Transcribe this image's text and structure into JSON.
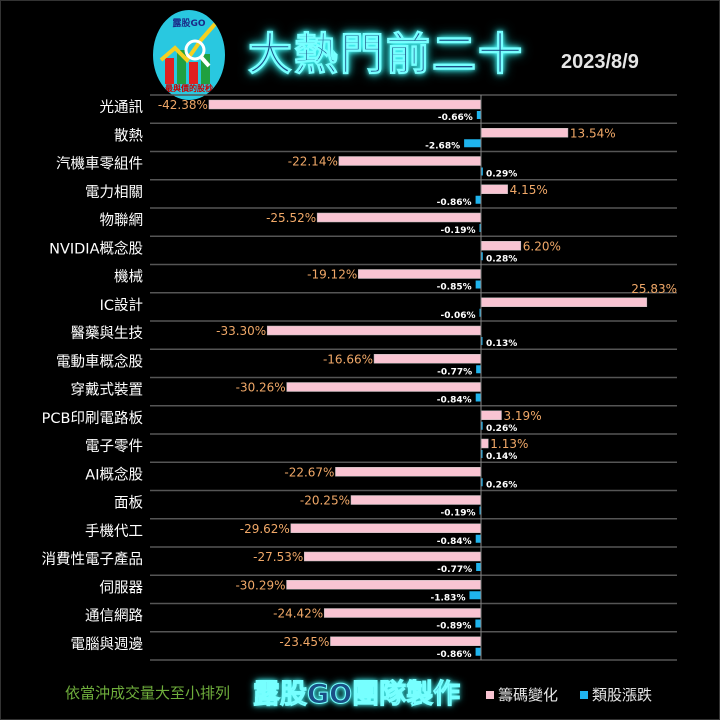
{
  "header": {
    "logo_text_top": "露股GO",
    "logo_text_bottom": "最與價的股秒",
    "title": "大熱門前二十",
    "date": "2023/8/9"
  },
  "footer": {
    "note": "依當沖成交量大至小排列",
    "team": "露股GO團隊製作"
  },
  "colors": {
    "chip": "#f9c4d2",
    "sector": "#1fb4ee",
    "chip_label": "#f0a868",
    "sector_label": "#ffffff",
    "category_label": "#ffffff"
  },
  "chart_data": {
    "type": "bar",
    "orientation": "horizontal",
    "categories": [
      "光通訊",
      "散熱",
      "汽機車零組件",
      "電力相關",
      "物聯網",
      "NVIDIA概念股",
      "機械",
      "IC設計",
      "醫藥與生技",
      "電動車概念股",
      "穿戴式裝置",
      "PCB印刷電路板",
      "電子零件",
      "AI概念股",
      "面板",
      "手機代工",
      "消費性電子產品",
      "伺服器",
      "通信網路",
      "電腦與週邊"
    ],
    "series": [
      {
        "name": "籌碼變化",
        "values": [
          -42.38,
          13.54,
          -22.14,
          4.15,
          -25.52,
          6.2,
          -19.12,
          25.83,
          -33.3,
          -16.66,
          -30.26,
          3.19,
          1.13,
          -22.67,
          -20.25,
          -29.62,
          -27.53,
          -30.29,
          -24.42,
          -23.45
        ],
        "labels": [
          "-42.38%",
          "13.54%",
          "-22.14%",
          "4.15%",
          "-25.52%",
          "6.20%",
          "-19.12%",
          "25.83%",
          "-33.30%",
          "-16.66%",
          "-30.26%",
          "3.19%",
          "1.13%",
          "-22.67%",
          "-20.25%",
          "-29.62%",
          "-27.53%",
          "-30.29%",
          "-24.42%",
          "-23.45%"
        ]
      },
      {
        "name": "類股漲跌",
        "values": [
          -0.66,
          -2.68,
          0.29,
          -0.86,
          -0.19,
          0.28,
          -0.85,
          -0.06,
          0.13,
          -0.77,
          -0.84,
          0.26,
          0.14,
          0.26,
          -0.19,
          -0.84,
          -0.77,
          -1.83,
          -0.89,
          -0.86
        ],
        "labels": [
          "-0.66%",
          "-2.68%",
          "0.29%",
          "-0.86%",
          "-0.19%",
          "0.28%",
          "-0.85%",
          "-0.06%",
          "0.13%",
          "-0.77%",
          "-0.84%",
          "0.26%",
          "0.14%",
          "0.26%",
          "-0.19%",
          "-0.84%",
          "-0.77%",
          "-1.83%",
          "-0.89%",
          "-0.86%"
        ]
      }
    ],
    "xlim": [
      -42.38,
      40
    ],
    "grid": true,
    "legend": "bottom-right"
  }
}
